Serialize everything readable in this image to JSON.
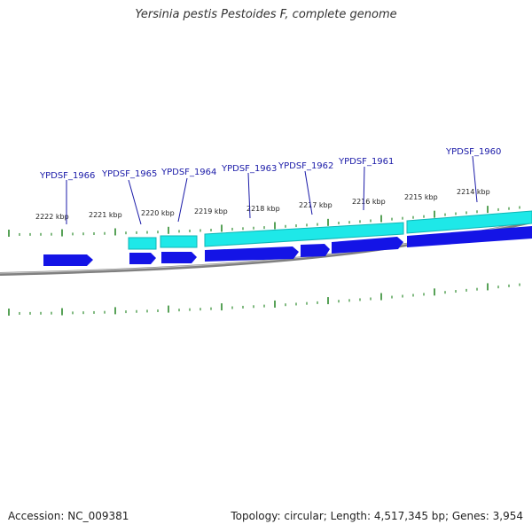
{
  "header": {
    "title": "Yersinia pestis Pestoides F, complete genome"
  },
  "footer": {
    "accession": "Accession: NC_009381",
    "topology": "Topology: circular; Length: 4,517,345 bp; Genes: 3,954"
  },
  "colors": {
    "backbone": "#808080",
    "tick": "#2e8b2e",
    "gene_blue": "#1414e6",
    "gene_cyan": "#1ee8e8",
    "label": "#1a1aa8"
  },
  "ruler": {
    "labels": [
      "2222 kbp",
      "2221 kbp",
      "2220 kbp",
      "2219 kbp",
      "2218 kbp",
      "2217 kbp",
      "2216 kbp",
      "2215 kbp",
      "2214 kbp"
    ]
  },
  "genes": {
    "labels": [
      "YPDSF_1966",
      "YPDSF_1965",
      "YPDSF_1964",
      "YPDSF_1963",
      "YPDSF_1962",
      "YPDSF_1961",
      "YPDSF_1960"
    ]
  }
}
